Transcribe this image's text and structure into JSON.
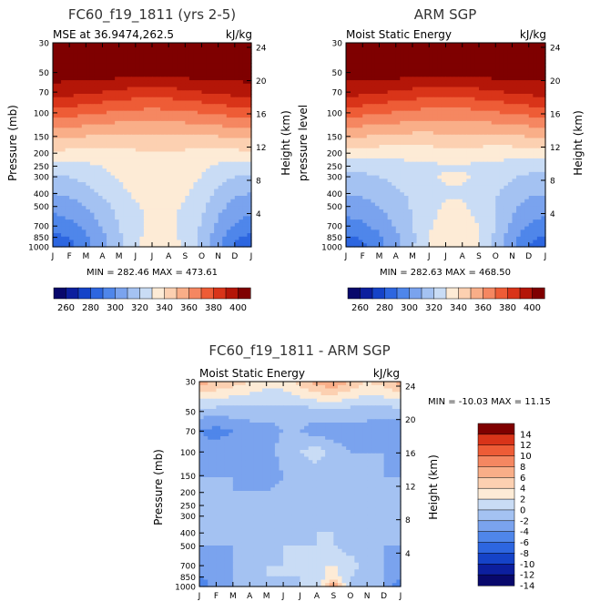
{
  "palette": {
    "levels": [
      "#08086b",
      "#0c1f9e",
      "#1543c8",
      "#2d66e0",
      "#4f86ea",
      "#7aa3ee",
      "#a4c2f2",
      "#c9dcf5",
      "#fdebd6",
      "#fcd0b1",
      "#f9ae88",
      "#f58761",
      "#ee5c36",
      "#d93419",
      "#b41608",
      "#7f0000"
    ],
    "diff": [
      "#08086b",
      "#0c1f9e",
      "#1543c8",
      "#2d66e0",
      "#4f86ea",
      "#7aa3ee",
      "#a4c2f2",
      "#c9dcf5",
      "#fdebd6",
      "#fcd0b1",
      "#f9ae88",
      "#f58761",
      "#ee5c36",
      "#d93419",
      "#7f0000"
    ]
  },
  "shared": {
    "months": [
      "J",
      "F",
      "M",
      "A",
      "M",
      "J",
      "J",
      "A",
      "S",
      "O",
      "N",
      "D",
      "J"
    ],
    "pressure_ticks": [
      "30",
      "50",
      "70",
      "100",
      "150",
      "200",
      "250",
      "300",
      "400",
      "500",
      "700",
      "850",
      "1000"
    ],
    "pressure_values": [
      30,
      50,
      70,
      100,
      150,
      200,
      250,
      300,
      400,
      500,
      700,
      850,
      1000
    ],
    "height_ticks": [
      "24",
      "20",
      "16",
      "12",
      "8",
      "4"
    ],
    "height_values": [
      24,
      20,
      16,
      12,
      8,
      4
    ]
  },
  "panels": [
    {
      "id": "model",
      "title": "FC60_f19_1811 (yrs 2-5)",
      "subtitle_left": "MSE at 36.9474,262.5",
      "subtitle_right": "kJ/kg",
      "ylabel_left": "Pressure (mb)",
      "ylabel_right": "Height (km)",
      "stats": "MIN = 282.46 MAX = 473.61"
    },
    {
      "id": "obs",
      "title": "ARM SGP",
      "subtitle_left": "Moist Static Energy",
      "subtitle_right": "kJ/kg",
      "ylabel_left": "pressure level",
      "ylabel_right": "Height (km)",
      "stats": "MIN = 282.63 MAX = 468.50"
    },
    {
      "id": "diff",
      "title": "FC60_f19_1811 - ARM SGP",
      "subtitle_left": "Moist Static Energy",
      "subtitle_right": "kJ/kg",
      "ylabel_left": "Pressure (mb)",
      "ylabel_right": "Height (km)",
      "stats": "MIN = -10.03 MAX =  11.15"
    }
  ],
  "colorbar_abs": {
    "labels": [
      "260",
      "280",
      "300",
      "320",
      "340",
      "360",
      "380",
      "400"
    ]
  },
  "colorbar_diff": {
    "labels": [
      "14",
      "12",
      "10",
      "8",
      "6",
      "4",
      "2",
      "0",
      "-2",
      "-4",
      "-6",
      "-8",
      "-10",
      "-12",
      "-14"
    ]
  },
  "chart_data": [
    {
      "type": "heatmap",
      "title": "FC60_f19_1811 (yrs 2-5)",
      "subtitle": "MSE at 36.9474,262.5",
      "units": "kJ/kg",
      "x": [
        "J",
        "F",
        "M",
        "A",
        "M",
        "J",
        "J",
        "A",
        "S",
        "O",
        "N",
        "D",
        "J"
      ],
      "y_pressure_mb": [
        30,
        50,
        70,
        100,
        150,
        200,
        250,
        300,
        400,
        500,
        700,
        850,
        1000
      ],
      "xlabel": "",
      "ylabel": "Pressure (mb)",
      "y2label": "Height (km)",
      "levels": [
        250,
        260,
        270,
        280,
        290,
        300,
        310,
        320,
        330,
        340,
        350,
        360,
        370,
        380,
        390,
        400
      ],
      "min": 282.46,
      "max": 473.61,
      "values_by_pressure": {
        "30": [
          455,
          455,
          455,
          455,
          455,
          455,
          455,
          455,
          455,
          455,
          455,
          455,
          455
        ],
        "50": [
          405,
          405,
          405,
          405,
          405,
          405,
          405,
          405,
          405,
          405,
          405,
          405,
          405
        ],
        "70": [
          395,
          394,
          392,
          390,
          388,
          386,
          385,
          386,
          388,
          390,
          392,
          394,
          395
        ],
        "100": [
          375,
          374,
          372,
          370,
          368,
          367,
          366,
          367,
          368,
          370,
          372,
          374,
          375
        ],
        "150": [
          352,
          351,
          350,
          349,
          348,
          348,
          349,
          349,
          349,
          349,
          350,
          351,
          352
        ],
        "200": [
          338,
          337,
          336,
          336,
          336,
          338,
          340,
          340,
          338,
          336,
          336,
          337,
          338
        ],
        "250": [
          325,
          326,
          328,
          330,
          333,
          336,
          338,
          338,
          336,
          332,
          328,
          326,
          325
        ],
        "300": [
          318,
          320,
          323,
          327,
          331,
          334,
          336,
          336,
          334,
          330,
          324,
          320,
          318
        ],
        "400": [
          310,
          312,
          316,
          321,
          327,
          332,
          334,
          334,
          331,
          326,
          318,
          312,
          310
        ],
        "500": [
          303,
          305,
          310,
          316,
          323,
          329,
          332,
          332,
          329,
          322,
          313,
          306,
          303
        ],
        "700": [
          295,
          297,
          303,
          311,
          320,
          328,
          332,
          332,
          328,
          319,
          308,
          299,
          295
        ],
        "850": [
          287,
          290,
          298,
          307,
          318,
          328,
          333,
          333,
          328,
          317,
          304,
          292,
          287
        ],
        "1000": [
          283,
          287,
          296,
          306,
          318,
          329,
          335,
          334,
          328,
          316,
          301,
          289,
          283
        ]
      }
    },
    {
      "type": "heatmap",
      "title": "ARM SGP",
      "subtitle": "Moist Static Energy",
      "units": "kJ/kg",
      "x": [
        "J",
        "F",
        "M",
        "A",
        "M",
        "J",
        "J",
        "A",
        "S",
        "O",
        "N",
        "D",
        "J"
      ],
      "y_pressure_mb": [
        30,
        50,
        70,
        100,
        150,
        200,
        250,
        300,
        400,
        500,
        700,
        850,
        1000
      ],
      "xlabel": "",
      "ylabel": "pressure level",
      "y2label": "Height (km)",
      "levels": [
        250,
        260,
        270,
        280,
        290,
        300,
        310,
        320,
        330,
        340,
        350,
        360,
        370,
        380,
        390,
        400
      ],
      "min": 282.63,
      "max": 468.5,
      "values_by_pressure": {
        "30": [
          455,
          455,
          455,
          455,
          455,
          455,
          455,
          455,
          455,
          455,
          455,
          455,
          455
        ],
        "50": [
          405,
          405,
          405,
          405,
          405,
          405,
          405,
          405,
          405,
          405,
          405,
          405,
          405
        ],
        "70": [
          394,
          393,
          391,
          389,
          387,
          385,
          384,
          385,
          387,
          389,
          391,
          393,
          394
        ],
        "100": [
          374,
          373,
          371,
          369,
          367,
          366,
          365,
          366,
          367,
          369,
          371,
          373,
          374
        ],
        "150": [
          351,
          350,
          349,
          348,
          347,
          347,
          348,
          348,
          348,
          348,
          349,
          350,
          351
        ],
        "200": [
          336,
          335,
          334,
          334,
          334,
          335,
          336,
          336,
          335,
          334,
          334,
          335,
          336
        ],
        "250": [
          324,
          324,
          325,
          326,
          327,
          328,
          329,
          329,
          328,
          327,
          326,
          324,
          324
        ],
        "300": [
          317,
          318,
          320,
          323,
          326,
          329,
          331,
          331,
          329,
          325,
          321,
          318,
          317
        ],
        "400": [
          311,
          312,
          314,
          318,
          322,
          326,
          329,
          329,
          326,
          321,
          316,
          312,
          311
        ],
        "500": [
          304,
          306,
          310,
          315,
          321,
          327,
          331,
          331,
          327,
          320,
          312,
          306,
          304
        ],
        "700": [
          296,
          298,
          303,
          311,
          320,
          329,
          334,
          334,
          330,
          319,
          308,
          299,
          296
        ],
        "850": [
          288,
          291,
          298,
          307,
          318,
          330,
          337,
          337,
          331,
          318,
          304,
          292,
          288
        ],
        "1000": [
          283,
          287,
          296,
          306,
          319,
          331,
          339,
          338,
          331,
          317,
          301,
          289,
          283
        ]
      }
    },
    {
      "type": "heatmap",
      "title": "FC60_f19_1811 - ARM SGP",
      "subtitle": "Moist Static Energy",
      "units": "kJ/kg",
      "x": [
        "J",
        "F",
        "M",
        "A",
        "M",
        "J",
        "J",
        "A",
        "S",
        "O",
        "N",
        "D",
        "J"
      ],
      "y_pressure_mb": [
        30,
        50,
        70,
        100,
        150,
        200,
        250,
        300,
        400,
        500,
        700,
        850,
        1000
      ],
      "xlabel": "",
      "ylabel": "Pressure (mb)",
      "y2label": "Height (km)",
      "levels": [
        -14,
        -12,
        -10,
        -8,
        -6,
        -4,
        -2,
        0,
        2,
        4,
        6,
        8,
        10,
        12,
        14
      ],
      "min": -10.03,
      "max": 11.15,
      "values_by_pressure": {
        "30": [
          7,
          6,
          5,
          4,
          3,
          3,
          5,
          7,
          8,
          6,
          4,
          5,
          7
        ],
        "50": [
          -1,
          -1,
          -1,
          -1,
          -1,
          -1,
          -1,
          -1,
          -1,
          -1,
          -1,
          -1,
          -1
        ],
        "70": [
          -4,
          -5,
          -4,
          -3,
          -3,
          -2,
          -2,
          -3,
          -3,
          -3,
          -3,
          -4,
          -4
        ],
        "100": [
          -3,
          -3,
          -2,
          -3,
          -3,
          -1,
          0,
          1,
          -1,
          -2,
          -2,
          -2,
          -3
        ],
        "150": [
          -2,
          -2,
          -2,
          -3,
          -4,
          -2,
          -1,
          -1,
          -2,
          -2,
          -2,
          -2,
          -2
        ],
        "200": [
          -2,
          -2,
          -2,
          -2,
          -2,
          -1,
          -1,
          -1,
          -1,
          -2,
          -2,
          -2,
          -2
        ],
        "250": [
          -2,
          -2,
          -1,
          -1,
          -2,
          -1,
          -1,
          -1,
          -1,
          -1,
          -1,
          -1,
          -2
        ],
        "300": [
          -2,
          -2,
          -1,
          -1,
          -1,
          -1,
          -1,
          0,
          -1,
          -1,
          -1,
          -1,
          -2
        ],
        "400": [
          -2,
          -2,
          -1,
          -1,
          -1,
          -1,
          -1,
          0,
          0,
          -1,
          -1,
          -1,
          -2
        ],
        "500": [
          -2,
          -2,
          -2,
          -1,
          -1,
          0,
          0,
          0,
          0,
          -1,
          -1,
          -2,
          -2
        ],
        "700": [
          -3,
          -3,
          -2,
          -1,
          0,
          0,
          1,
          2,
          2,
          1,
          -1,
          -2,
          -3
        ],
        "850": [
          -4,
          -3,
          -2,
          -1,
          0,
          0,
          0,
          1,
          3,
          0,
          -1,
          -2,
          -4
        ],
        "1000": [
          -6,
          -3,
          -2,
          -1,
          -1,
          -1,
          0,
          1,
          8,
          0,
          -2,
          -2,
          -6
        ]
      }
    }
  ]
}
